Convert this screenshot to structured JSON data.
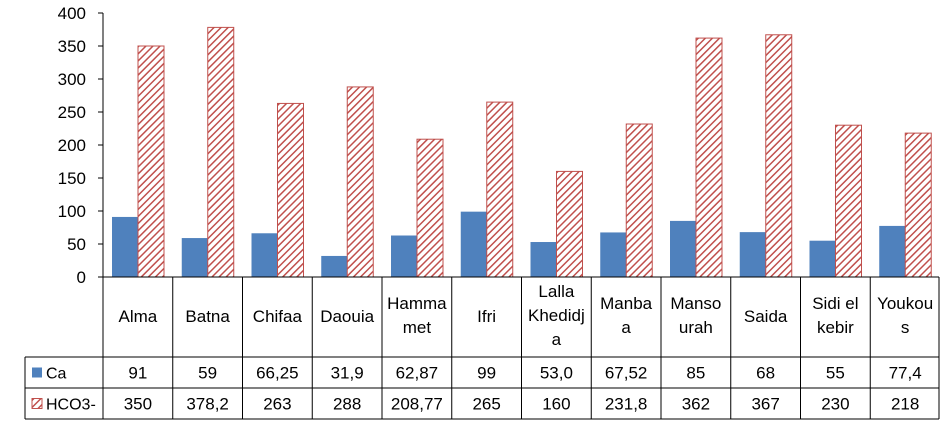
{
  "chart_data": {
    "type": "bar",
    "categories": [
      [
        "Alma"
      ],
      [
        "Batna"
      ],
      [
        "Chifaa"
      ],
      [
        "Daouia"
      ],
      [
        "Hamma",
        "met"
      ],
      [
        "Ifri"
      ],
      [
        "Lalla",
        "Khedidj",
        "a"
      ],
      [
        "Manba",
        "a"
      ],
      [
        "Manso",
        "urah"
      ],
      [
        "Saida"
      ],
      [
        "Sidi el",
        "kebir"
      ],
      [
        "Youkou",
        "s"
      ]
    ],
    "series": [
      {
        "name": "Ca",
        "color": "#4F81BD",
        "pattern": "solid",
        "values": [
          91,
          59,
          66.25,
          31.9,
          62.87,
          99,
          53.0,
          67.52,
          85,
          68,
          55,
          77.4
        ],
        "labels": [
          "91",
          "59",
          "66,25",
          "31,9",
          "62,87",
          "99",
          "53,0",
          "67,52",
          "85",
          "68",
          "55",
          "77,4"
        ]
      },
      {
        "name": "HCO3-",
        "color": "#C0504D",
        "pattern": "diagonal-hatch",
        "values": [
          350,
          378.2,
          263,
          288,
          208.77,
          265,
          160,
          231.8,
          362,
          367,
          230,
          218
        ],
        "labels": [
          "350",
          "378,2",
          "263",
          "288",
          "208,77",
          "265",
          "160",
          "231,8",
          "362",
          "367",
          "230",
          "218"
        ]
      }
    ],
    "ylim": [
      0,
      400
    ],
    "yticks": [
      0,
      50,
      100,
      150,
      200,
      250,
      300,
      350,
      400
    ],
    "grid": false,
    "legend": "data-table"
  }
}
